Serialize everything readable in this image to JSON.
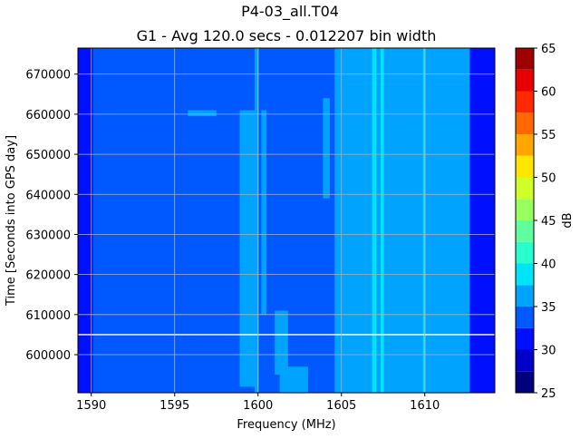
{
  "chart_data": {
    "type": "heatmap",
    "title": "P4-03_all.T04",
    "subtitle": "G1 - Avg 120.0 secs - 0.012207 bin width",
    "xlabel": "Frequency (MHz)",
    "ylabel": "Time [Seconds into GPS day]",
    "xlim": [
      1589.2,
      1614.2
    ],
    "ylim": [
      590500,
      676500
    ],
    "x_ticks": [
      1590,
      1595,
      1600,
      1605,
      1610
    ],
    "y_ticks": [
      600000,
      610000,
      620000,
      630000,
      640000,
      650000,
      660000,
      670000
    ],
    "grid": true,
    "colorbar": {
      "label": "dB",
      "min": 25,
      "max": 65,
      "ticks": [
        25,
        30,
        35,
        40,
        45,
        50,
        55,
        60,
        65
      ],
      "levels": [
        {
          "from": 25.0,
          "to": 27.5,
          "color": "#00007f"
        },
        {
          "from": 27.5,
          "to": 30.0,
          "color": "#0000c8"
        },
        {
          "from": 30.0,
          "to": 32.5,
          "color": "#0010ff"
        },
        {
          "from": 32.5,
          "to": 35.0,
          "color": "#0058ff"
        },
        {
          "from": 35.0,
          "to": 37.5,
          "color": "#00a4ff"
        },
        {
          "from": 37.5,
          "to": 40.0,
          "color": "#00e4f8"
        },
        {
          "from": 40.0,
          "to": 42.5,
          "color": "#29ffce"
        },
        {
          "from": 42.5,
          "to": 45.0,
          "color": "#5fffa0"
        },
        {
          "from": 45.0,
          "to": 47.5,
          "color": "#98ff60"
        },
        {
          "from": 47.5,
          "to": 50.0,
          "color": "#ceff29"
        },
        {
          "from": 50.0,
          "to": 52.5,
          "color": "#ffe600"
        },
        {
          "from": 52.5,
          "to": 55.0,
          "color": "#ffa700"
        },
        {
          "from": 55.0,
          "to": 57.5,
          "color": "#ff6800"
        },
        {
          "from": 57.5,
          "to": 60.0,
          "color": "#ff2900"
        },
        {
          "from": 60.0,
          "to": 62.5,
          "color": "#e60000"
        },
        {
          "from": 62.5,
          "to": 65.0,
          "color": "#9f0000"
        }
      ]
    },
    "background_db": 33,
    "regions": [
      {
        "x": [
          1589.2,
          1589.9
        ],
        "y": [
          590500,
          676500
        ],
        "db": 31
      },
      {
        "x": [
          1589.9,
          1590.1
        ],
        "y": [
          590500,
          676500
        ],
        "db": 30
      },
      {
        "x": [
          1612.7,
          1614.2
        ],
        "y": [
          590500,
          676500
        ],
        "db": 31
      },
      {
        "x": [
          1604.6,
          1612.7
        ],
        "y": [
          590500,
          676500
        ],
        "db": 36
      },
      {
        "x": [
          1605.7,
          1605.9
        ],
        "y": [
          590500,
          676500
        ],
        "db": 37
      },
      {
        "x": [
          1606.3,
          1606.5
        ],
        "y": [
          590500,
          676500
        ],
        "db": 37
      },
      {
        "x": [
          1606.85,
          1607.1
        ],
        "y": [
          590500,
          676500
        ],
        "db": 38
      },
      {
        "x": [
          1607.35,
          1607.55
        ],
        "y": [
          590500,
          676500
        ],
        "db": 38
      },
      {
        "x": [
          1607.85,
          1608.05
        ],
        "y": [
          590500,
          676500
        ],
        "db": 37
      },
      {
        "x": [
          1609.9,
          1610.05
        ],
        "y": [
          590500,
          676500
        ],
        "db": 38
      },
      {
        "x": [
          1598.9,
          1600.0
        ],
        "y": [
          592000,
          661000
        ],
        "db": 36
      },
      {
        "x": [
          1600.2,
          1600.5
        ],
        "y": [
          610000,
          661000
        ],
        "db": 36
      },
      {
        "x": [
          1599.8,
          1600.05
        ],
        "y": [
          590500,
          676500
        ],
        "db": 37
      },
      {
        "x": [
          1601.0,
          1601.8
        ],
        "y": [
          595000,
          611000
        ],
        "db": 36
      },
      {
        "x": [
          1595.8,
          1597.5
        ],
        "y": [
          659500,
          661000
        ],
        "db": 36
      },
      {
        "x": [
          1603.9,
          1604.3
        ],
        "y": [
          639000,
          664000
        ],
        "db": 35
      },
      {
        "x": [
          1611.0,
          1612.5
        ],
        "y": [
          591500,
          638000
        ],
        "db": 35
      },
      {
        "x": [
          1601.3,
          1603.0
        ],
        "y": [
          590500,
          597000
        ],
        "db": 35
      }
    ],
    "hlines": [
      605000
    ]
  }
}
